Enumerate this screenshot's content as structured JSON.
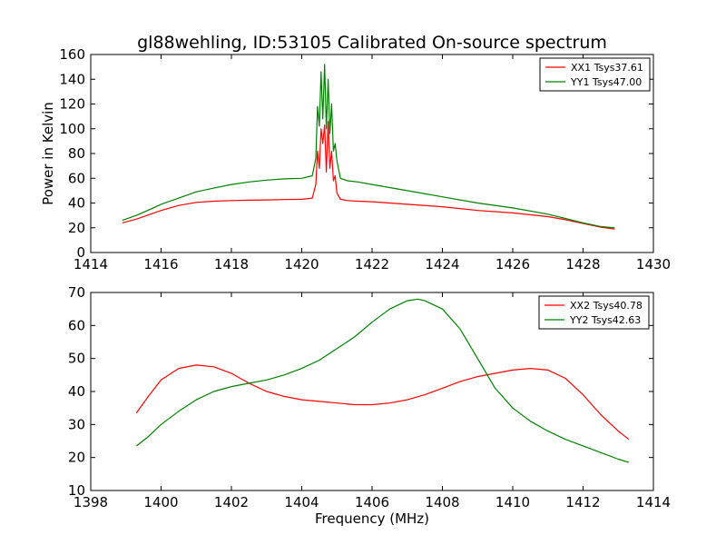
{
  "chart_data": [
    {
      "type": "line",
      "title": "gl88wehling, ID:53105 Calibrated On-source spectrum",
      "xlabel": "",
      "ylabel": "Power in Kelvin",
      "xlim": [
        1414,
        1430
      ],
      "ylim": [
        0,
        160
      ],
      "xticks": [
        "1414",
        "1416",
        "1418",
        "1420",
        "1422",
        "1424",
        "1426",
        "1428",
        "1430"
      ],
      "yticks": [
        "0",
        "20",
        "40",
        "60",
        "80",
        "100",
        "120",
        "140",
        "160"
      ],
      "legend_position": "top-right",
      "series": [
        {
          "name": "XX1 Tsys37.61",
          "color": "#ff0000",
          "x": [
            1414.9,
            1415.3,
            1415.7,
            1416.0,
            1416.5,
            1417.0,
            1417.5,
            1418.0,
            1418.5,
            1419.0,
            1419.5,
            1420.0,
            1420.3,
            1420.4,
            1420.45,
            1420.5,
            1420.55,
            1420.6,
            1420.65,
            1420.7,
            1420.75,
            1420.8,
            1420.85,
            1420.9,
            1420.95,
            1421.0,
            1421.1,
            1421.3,
            1421.6,
            1422.0,
            1423.0,
            1424.0,
            1425.0,
            1426.0,
            1427.0,
            1427.5,
            1428.0,
            1428.5,
            1428.9
          ],
          "y": [
            24,
            27,
            31,
            34,
            38,
            40.5,
            41.5,
            42,
            42.3,
            42.5,
            42.8,
            43,
            44,
            55,
            82,
            68,
            100,
            88,
            103,
            65,
            106,
            68,
            82,
            58,
            62,
            48,
            43,
            42,
            41.5,
            41,
            39,
            37,
            34,
            32,
            29,
            26.5,
            23.5,
            20.5,
            19
          ]
        },
        {
          "name": "YY1 Tsys47.00",
          "color": "#008000",
          "x": [
            1414.9,
            1415.3,
            1415.7,
            1416.0,
            1416.5,
            1417.0,
            1417.5,
            1418.0,
            1418.5,
            1419.0,
            1419.5,
            1420.0,
            1420.3,
            1420.4,
            1420.45,
            1420.5,
            1420.55,
            1420.6,
            1420.65,
            1420.7,
            1420.75,
            1420.8,
            1420.85,
            1420.9,
            1420.95,
            1421.0,
            1421.1,
            1421.3,
            1421.6,
            1422.0,
            1423.0,
            1424.0,
            1425.0,
            1426.0,
            1427.0,
            1427.5,
            1428.0,
            1428.5,
            1428.9
          ],
          "y": [
            26,
            30,
            35,
            39,
            44,
            49,
            52,
            55,
            57,
            58.5,
            59.5,
            60,
            62,
            76,
            118,
            102,
            146,
            108,
            152,
            100,
            140,
            96,
            120,
            82,
            88,
            74,
            60,
            58,
            57,
            55,
            50,
            45,
            40,
            36,
            31,
            27.5,
            24,
            21,
            20
          ]
        }
      ]
    },
    {
      "type": "line",
      "title": "",
      "xlabel": "Frequency (MHz)",
      "ylabel": "",
      "xlim": [
        1398,
        1414
      ],
      "ylim": [
        10,
        70
      ],
      "xticks": [
        "1398",
        "1400",
        "1402",
        "1404",
        "1406",
        "1408",
        "1410",
        "1412",
        "1414"
      ],
      "yticks": [
        "10",
        "20",
        "30",
        "40",
        "50",
        "60",
        "70"
      ],
      "legend_position": "top-right",
      "series": [
        {
          "name": "XX2 Tsys40.78",
          "color": "#ff0000",
          "x": [
            1399.3,
            1399.6,
            1400.0,
            1400.5,
            1401.0,
            1401.5,
            1402.0,
            1402.5,
            1403.0,
            1403.5,
            1404.0,
            1404.5,
            1405.0,
            1405.5,
            1406.0,
            1406.5,
            1407.0,
            1407.5,
            1408.0,
            1408.5,
            1409.0,
            1409.5,
            1410.0,
            1410.5,
            1411.0,
            1411.5,
            1412.0,
            1412.5,
            1413.0,
            1413.3
          ],
          "y": [
            33.5,
            38,
            43.5,
            47,
            48,
            47.5,
            45.5,
            42.5,
            40,
            38.5,
            37.5,
            37,
            36.5,
            36,
            36,
            36.5,
            37.5,
            39,
            41,
            43,
            44.5,
            45.5,
            46.5,
            47,
            46.5,
            44,
            39,
            33,
            28,
            25.5
          ]
        },
        {
          "name": "YY2 Tsys42.63",
          "color": "#008000",
          "x": [
            1399.3,
            1399.6,
            1400.0,
            1400.5,
            1401.0,
            1401.5,
            1402.0,
            1402.5,
            1403.0,
            1403.5,
            1404.0,
            1404.5,
            1405.0,
            1405.5,
            1406.0,
            1406.5,
            1407.0,
            1407.3,
            1407.5,
            1408.0,
            1408.5,
            1409.0,
            1409.5,
            1410.0,
            1410.5,
            1411.0,
            1411.5,
            1412.0,
            1412.5,
            1413.0,
            1413.3
          ],
          "y": [
            23.5,
            26,
            30,
            34,
            37.5,
            40,
            41.5,
            42.5,
            43.5,
            45,
            47,
            49.5,
            53,
            56.5,
            61,
            65,
            67.5,
            68,
            67.5,
            65,
            59,
            50,
            41,
            35,
            31,
            28,
            25.5,
            23.5,
            21.5,
            19.5,
            18.5
          ]
        }
      ]
    }
  ]
}
